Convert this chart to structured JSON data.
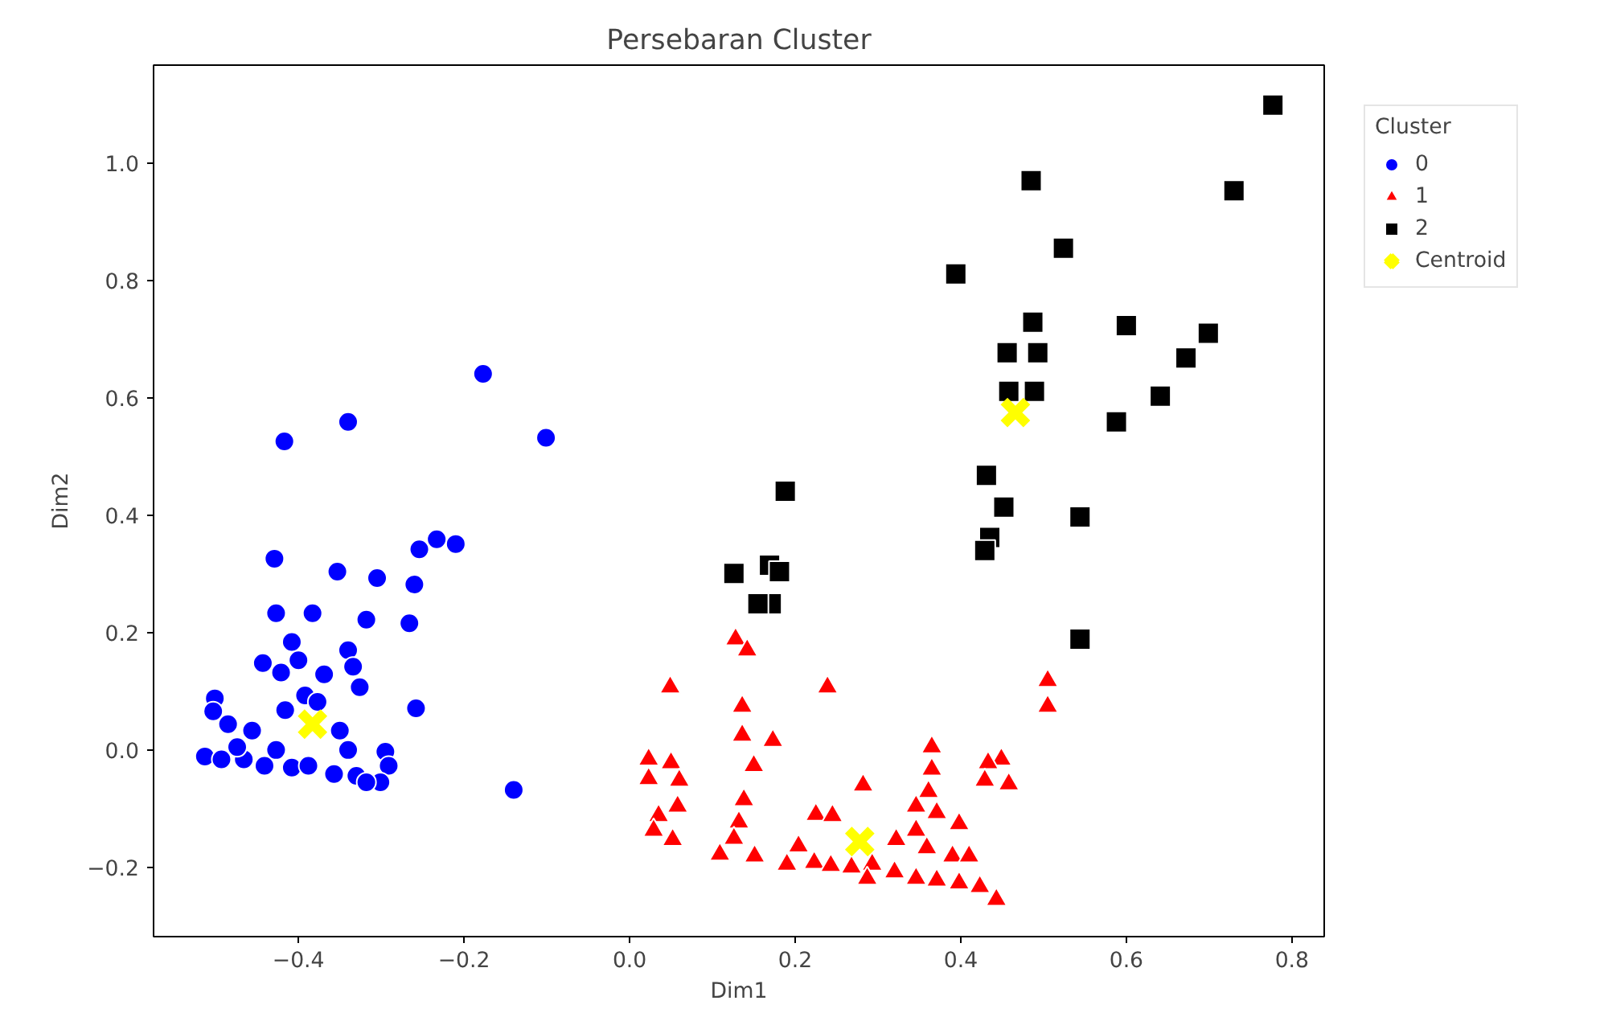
{
  "chart_data": {
    "type": "scatter",
    "title": "Persebaran Cluster",
    "xlabel": "Dim1",
    "ylabel": "Dim2",
    "legend_title": "Cluster",
    "legend": "top right",
    "grid": false,
    "xlim": [
      -0.575,
      0.839
    ],
    "ylim": [
      -0.318,
      1.167
    ],
    "xticks": [
      {
        "value": -0.4,
        "label": "−0.4"
      },
      {
        "value": -0.2,
        "label": "−0.2"
      },
      {
        "value": 0.0,
        "label": "0.0"
      },
      {
        "value": 0.2,
        "label": "0.2"
      },
      {
        "value": 0.4,
        "label": "0.4"
      },
      {
        "value": 0.6,
        "label": "0.6"
      },
      {
        "value": 0.8,
        "label": "0.8"
      }
    ],
    "yticks": [
      {
        "value": -0.2,
        "label": "−0.2"
      },
      {
        "value": 0.0,
        "label": "0.0"
      },
      {
        "value": 0.2,
        "label": "0.2"
      },
      {
        "value": 0.4,
        "label": "0.4"
      },
      {
        "value": 0.6,
        "label": "0.6"
      },
      {
        "value": 0.8,
        "label": "0.8"
      },
      {
        "value": 1.0,
        "label": "1.0"
      }
    ],
    "series": [
      {
        "name": "0",
        "color": "#0000ff",
        "marker": "circle",
        "x": [
          -0.417,
          -0.34,
          -0.177,
          -0.101,
          -0.429,
          -0.353,
          -0.305,
          -0.26,
          -0.254,
          -0.233,
          -0.21,
          -0.427,
          -0.383,
          -0.318,
          -0.266,
          -0.408,
          -0.443,
          -0.421,
          -0.4,
          -0.369,
          -0.34,
          -0.334,
          -0.326,
          -0.392,
          -0.258,
          -0.14,
          -0.501,
          -0.503,
          -0.485,
          -0.456,
          -0.416,
          -0.377,
          -0.35,
          -0.34,
          -0.295,
          -0.291,
          -0.301,
          -0.513,
          -0.493,
          -0.466,
          -0.441,
          -0.408,
          -0.383,
          -0.357,
          -0.33,
          -0.318,
          -0.474,
          -0.427,
          -0.388
        ],
        "values": [
          0.526,
          0.559,
          0.641,
          0.532,
          0.326,
          0.304,
          0.293,
          0.282,
          0.342,
          0.359,
          0.351,
          0.233,
          0.233,
          0.222,
          0.216,
          0.184,
          0.148,
          0.132,
          0.153,
          0.129,
          0.17,
          0.142,
          0.107,
          0.093,
          0.071,
          -0.068,
          0.088,
          0.066,
          0.044,
          0.033,
          0.068,
          0.082,
          0.033,
          0.0,
          -0.003,
          -0.027,
          -0.055,
          -0.011,
          -0.016,
          -0.016,
          -0.027,
          -0.03,
          null,
          -0.041,
          -0.044,
          -0.055,
          0.005,
          0.0,
          -0.027
        ]
      },
      {
        "name": "1",
        "color": "#ff0000",
        "marker": "triangle",
        "x": [
          0.128,
          0.142,
          0.049,
          0.239,
          0.136,
          0.136,
          0.173,
          0.365,
          0.023,
          0.05,
          0.023,
          0.06,
          0.15,
          0.449,
          0.433,
          0.429,
          0.458,
          0.365,
          0.361,
          0.282,
          0.058,
          0.138,
          0.346,
          0.371,
          0.398,
          0.225,
          0.245,
          0.035,
          0.029,
          0.052,
          0.132,
          0.126,
          0.151,
          0.109,
          0.346,
          0.322,
          0.359,
          0.39,
          0.41,
          0.204,
          0.19,
          0.223,
          0.243,
          0.268,
          0.293,
          0.32,
          0.346,
          0.371,
          0.398,
          0.423,
          0.443,
          0.287,
          0.505,
          0.505
        ],
        "values": [
          0.189,
          0.17,
          0.107,
          0.107,
          0.074,
          0.025,
          0.016,
          0.005,
          -0.016,
          -0.022,
          -0.049,
          -0.052,
          -0.027,
          -0.016,
          -0.022,
          -0.052,
          -0.058,
          -0.033,
          -0.071,
          -0.06,
          -0.096,
          -0.085,
          -0.096,
          -0.107,
          -0.126,
          -0.11,
          -0.112,
          -0.112,
          -0.137,
          -0.153,
          -0.123,
          -0.151,
          -0.181,
          -0.178,
          -0.137,
          -0.153,
          -0.167,
          -0.181,
          -0.181,
          -0.164,
          -0.195,
          -0.192,
          -0.197,
          -0.2,
          -0.195,
          -0.208,
          -0.219,
          -0.222,
          -0.227,
          -0.233,
          -0.255,
          -0.219,
          0.118,
          0.074
        ]
      },
      {
        "name": "2",
        "color": "#000000",
        "marker": "square",
        "x": [
          0.777,
          0.73,
          0.485,
          0.524,
          0.394,
          0.487,
          0.6,
          0.699,
          0.456,
          0.493,
          0.672,
          0.458,
          0.489,
          0.641,
          0.588,
          0.431,
          0.452,
          0.544,
          0.435,
          0.429,
          0.188,
          0.126,
          0.169,
          0.181,
          0.171,
          0.155,
          0.544
        ],
        "values": [
          1.099,
          0.953,
          0.97,
          0.855,
          0.811,
          0.729,
          0.723,
          0.71,
          0.677,
          0.677,
          0.668,
          0.611,
          0.611,
          0.603,
          0.559,
          0.468,
          0.414,
          0.397,
          0.362,
          0.34,
          0.441,
          0.301,
          0.315,
          0.304,
          0.249,
          0.249,
          0.189
        ]
      },
      {
        "name": "Centroid",
        "color": "#ffff00",
        "marker": "cross",
        "x": [
          -0.383,
          0.278,
          0.466
        ],
        "values": [
          0.044,
          -0.156,
          0.575
        ]
      }
    ]
  }
}
